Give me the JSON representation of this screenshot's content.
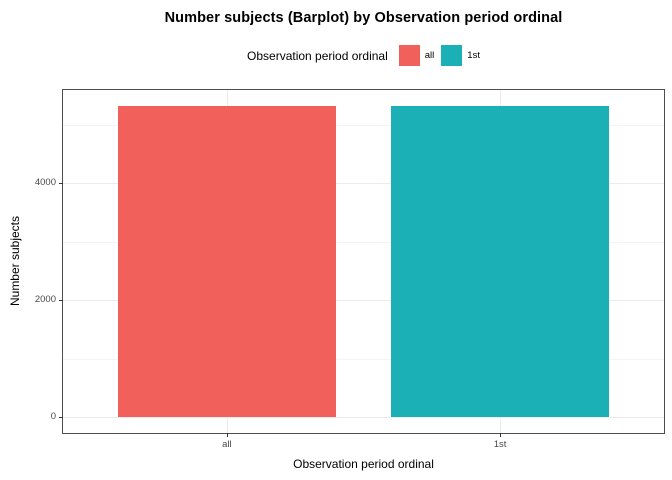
{
  "figure": {
    "title": "Number subjects (Barplot) by Observation period ordinal"
  },
  "legend": {
    "title": "Observation period ordinal",
    "items": [
      {
        "label": "all",
        "color": "#F2605C"
      },
      {
        "label": "1st",
        "color": "#1AB0B5"
      }
    ]
  },
  "chart_data": {
    "type": "bar",
    "title": "Number subjects (Barplot) by Observation period ordinal",
    "xlabel": "Observation period ordinal",
    "ylabel": "Number subjects",
    "legend_title": "Observation period ordinal",
    "legend_position": "top",
    "categories": [
      "all",
      "1st"
    ],
    "values": [
      5320,
      5320
    ],
    "colors": [
      "#F2605C",
      "#1AB0B5"
    ],
    "y_major_ticks": [
      0,
      2000,
      4000
    ],
    "y_minor_gridlines": [
      1000,
      3000,
      5000
    ],
    "ylim": [
      -270,
      5590
    ],
    "grid": true,
    "panel_border_color": "#4d4d4d",
    "gridline_major_color": "#ebebeb",
    "gridline_minor_color": "#f4f4f4"
  }
}
